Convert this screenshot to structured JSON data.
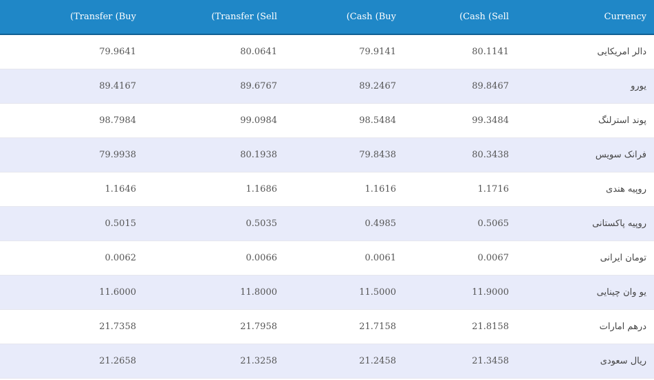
{
  "table": {
    "headers": {
      "transfer_buy": "(Transfer (Buy",
      "transfer_sell": "(Transfer (Sell",
      "cash_buy": "(Cash (Buy",
      "cash_sell": "(Cash (Sell",
      "currency": "Currency"
    },
    "rows": [
      {
        "currency": "دالر امریکایی",
        "cash_sell": "80.1141",
        "cash_buy": "79.9141",
        "transfer_sell": "80.0641",
        "transfer_buy": "79.9641"
      },
      {
        "currency": "یورو",
        "cash_sell": "89.8467",
        "cash_buy": "89.2467",
        "transfer_sell": "89.6767",
        "transfer_buy": "89.4167"
      },
      {
        "currency": "پوند استرلنگ",
        "cash_sell": "99.3484",
        "cash_buy": "98.5484",
        "transfer_sell": "99.0984",
        "transfer_buy": "98.7984"
      },
      {
        "currency": "فرانک سویس",
        "cash_sell": "80.3438",
        "cash_buy": "79.8438",
        "transfer_sell": "80.1938",
        "transfer_buy": "79.9938"
      },
      {
        "currency": "روپیه هندی",
        "cash_sell": "1.1716",
        "cash_buy": "1.1616",
        "transfer_sell": "1.1686",
        "transfer_buy": "1.1646"
      },
      {
        "currency": "روپیه پاکستانی",
        "cash_sell": "0.5065",
        "cash_buy": "0.4985",
        "transfer_sell": "0.5035",
        "transfer_buy": "0.5015"
      },
      {
        "currency": "تومان ایرانی",
        "cash_sell": "0.0067",
        "cash_buy": "0.0061",
        "transfer_sell": "0.0066",
        "transfer_buy": "0.0062"
      },
      {
        "currency": "یو وان چینایی",
        "cash_sell": "11.9000",
        "cash_buy": "11.5000",
        "transfer_sell": "11.8000",
        "transfer_buy": "11.6000"
      },
      {
        "currency": "درهم امارات",
        "cash_sell": "21.8158",
        "cash_buy": "21.7158",
        "transfer_sell": "21.7958",
        "transfer_buy": "21.7358"
      },
      {
        "currency": "ریال سعودی",
        "cash_sell": "21.3458",
        "cash_buy": "21.2458",
        "transfer_sell": "21.3258",
        "transfer_buy": "21.2658"
      }
    ]
  },
  "colors": {
    "header_bg": "#1f87c7",
    "header_text": "#ffffff",
    "row_alt_bg": "#e8ebfa",
    "row_bg": "#ffffff",
    "cell_text": "#555555"
  }
}
